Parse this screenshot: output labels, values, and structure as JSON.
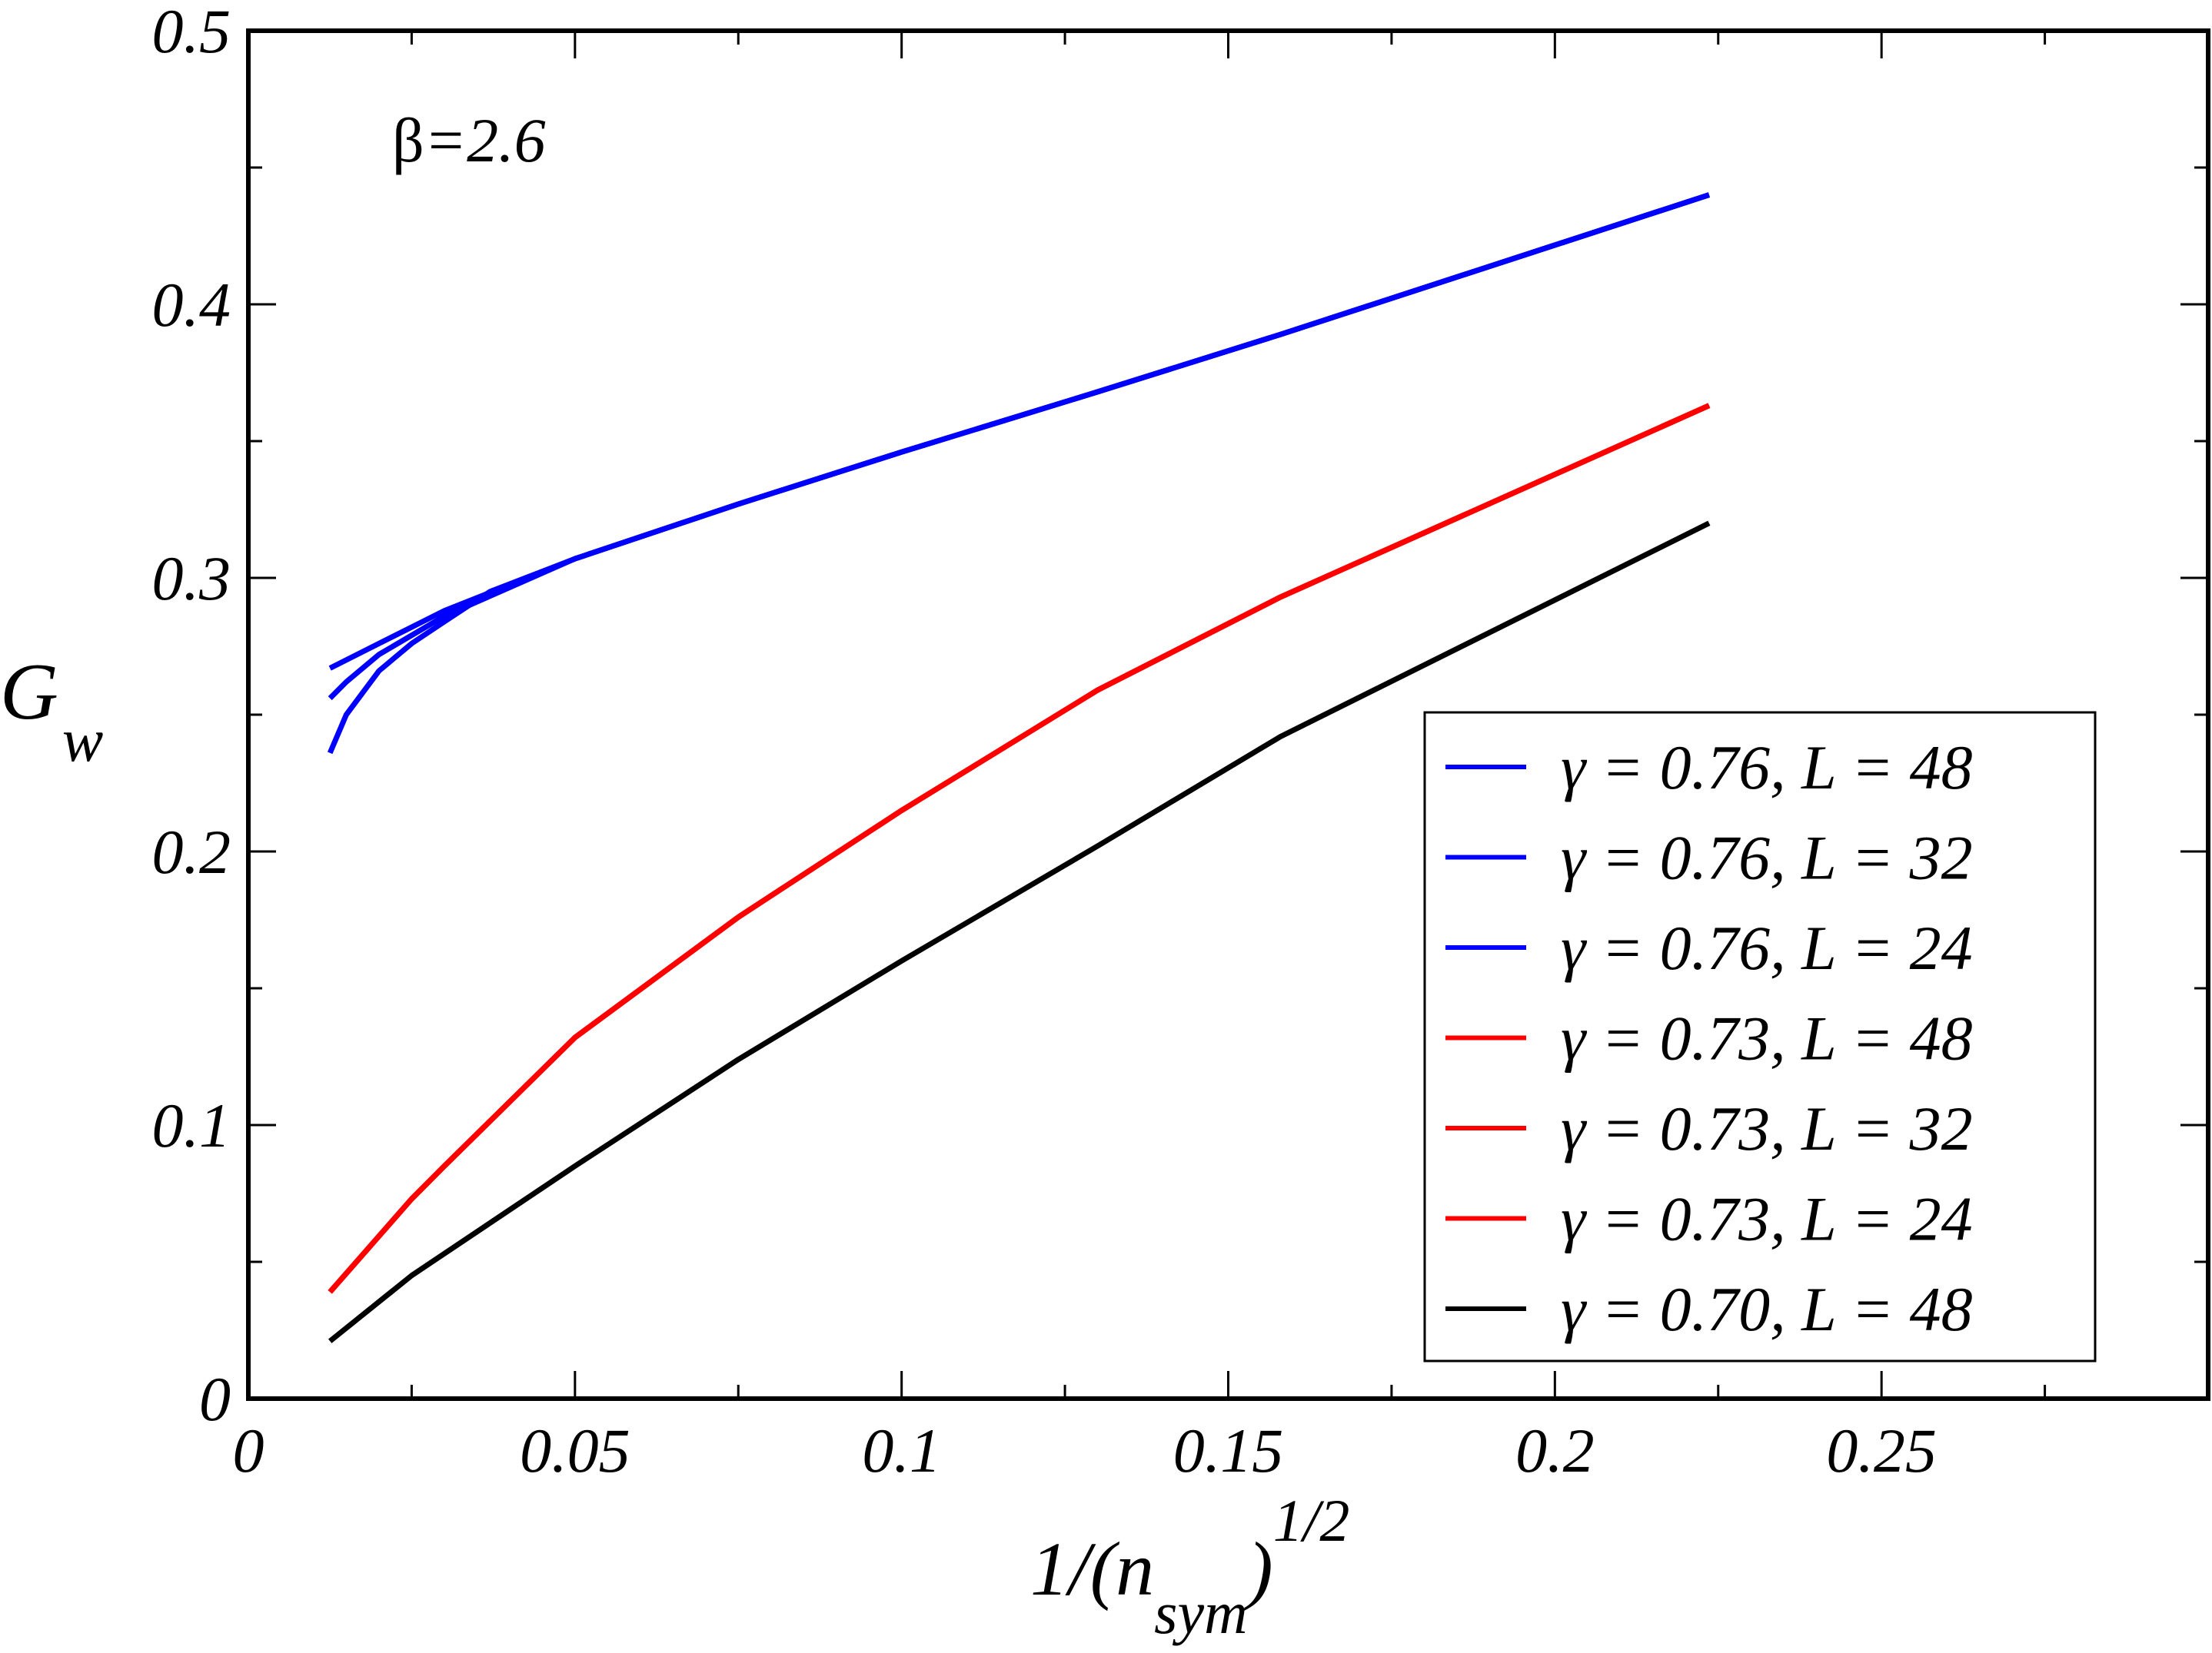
{
  "chart_data": {
    "type": "line",
    "title": "",
    "annotation": "β=2.6",
    "annotation_parts": {
      "symbol": "β",
      "rest": "=2.6"
    },
    "xlabel": "1/(n_sym)^1/2",
    "xlabel_parts": {
      "main": "1/(n",
      "sub": "sym",
      "close": ")",
      "sup": "1/2"
    },
    "ylabel": "G_w",
    "ylabel_parts": {
      "main": "G",
      "sub": "w"
    },
    "xlim": [
      0,
      0.3
    ],
    "ylim": [
      0,
      0.5
    ],
    "xticks": [
      0,
      0.05,
      0.1,
      0.15,
      0.2,
      0.25
    ],
    "xtick_labels": [
      "0",
      "0.05",
      "0.1",
      "0.15",
      "0.2",
      "0.25"
    ],
    "yticks": [
      0,
      0.1,
      0.2,
      0.3,
      0.4,
      0.5
    ],
    "ytick_labels": [
      "0",
      "0.1",
      "0.2",
      "0.3",
      "0.4",
      "0.5"
    ],
    "grid": false,
    "legend_position": "bottom-right",
    "series": [
      {
        "name": "γ = 0.76, L = 48",
        "color": "#0000ff",
        "x": [
          0.0125,
          0.02,
          0.03,
          0.05,
          0.075,
          0.1,
          0.13,
          0.158,
          0.2236
        ],
        "y": [
          0.267,
          0.276,
          0.288,
          0.307,
          0.327,
          0.346,
          0.368,
          0.389,
          0.44
        ]
      },
      {
        "name": "γ = 0.76, L = 32",
        "color": "#0000ff",
        "x": [
          0.0125,
          0.015,
          0.02,
          0.03,
          0.05,
          0.075,
          0.1,
          0.13,
          0.158,
          0.2236
        ],
        "y": [
          0.256,
          0.262,
          0.272,
          0.286,
          0.307,
          0.327,
          0.346,
          0.368,
          0.389,
          0.44
        ]
      },
      {
        "name": "γ = 0.76, L = 24",
        "color": "#0000ff",
        "x": [
          0.0125,
          0.015,
          0.02,
          0.025,
          0.03,
          0.037,
          0.05,
          0.075,
          0.1,
          0.13,
          0.158,
          0.2236
        ],
        "y": [
          0.236,
          0.25,
          0.266,
          0.276,
          0.284,
          0.295,
          0.307,
          0.327,
          0.346,
          0.368,
          0.389,
          0.44
        ]
      },
      {
        "name": "γ = 0.73, L = 48",
        "color": "#ff0000",
        "x": [
          0.0125,
          0.025,
          0.03,
          0.05,
          0.075,
          0.1,
          0.13,
          0.158,
          0.2236
        ],
        "y": [
          0.039,
          0.073,
          0.085,
          0.132,
          0.176,
          0.215,
          0.259,
          0.293,
          0.363
        ]
      },
      {
        "name": "γ = 0.73, L = 32",
        "color": "#ff0000",
        "x": [
          0.0125,
          0.025,
          0.03,
          0.05,
          0.075,
          0.1,
          0.13,
          0.158,
          0.2236
        ],
        "y": [
          0.039,
          0.073,
          0.085,
          0.132,
          0.176,
          0.215,
          0.259,
          0.293,
          0.363
        ]
      },
      {
        "name": "γ = 0.73, L = 24",
        "color": "#ff0000",
        "x": [
          0.0125,
          0.025,
          0.03,
          0.05,
          0.075,
          0.1,
          0.13,
          0.158,
          0.2236
        ],
        "y": [
          0.039,
          0.073,
          0.085,
          0.132,
          0.176,
          0.215,
          0.259,
          0.293,
          0.363
        ]
      },
      {
        "name": "γ = 0.70, L = 48",
        "color": "#000000",
        "x": [
          0.0125,
          0.025,
          0.05,
          0.075,
          0.1,
          0.13,
          0.158,
          0.2236
        ],
        "y": [
          0.021,
          0.045,
          0.085,
          0.124,
          0.16,
          0.202,
          0.242,
          0.32
        ]
      }
    ]
  }
}
